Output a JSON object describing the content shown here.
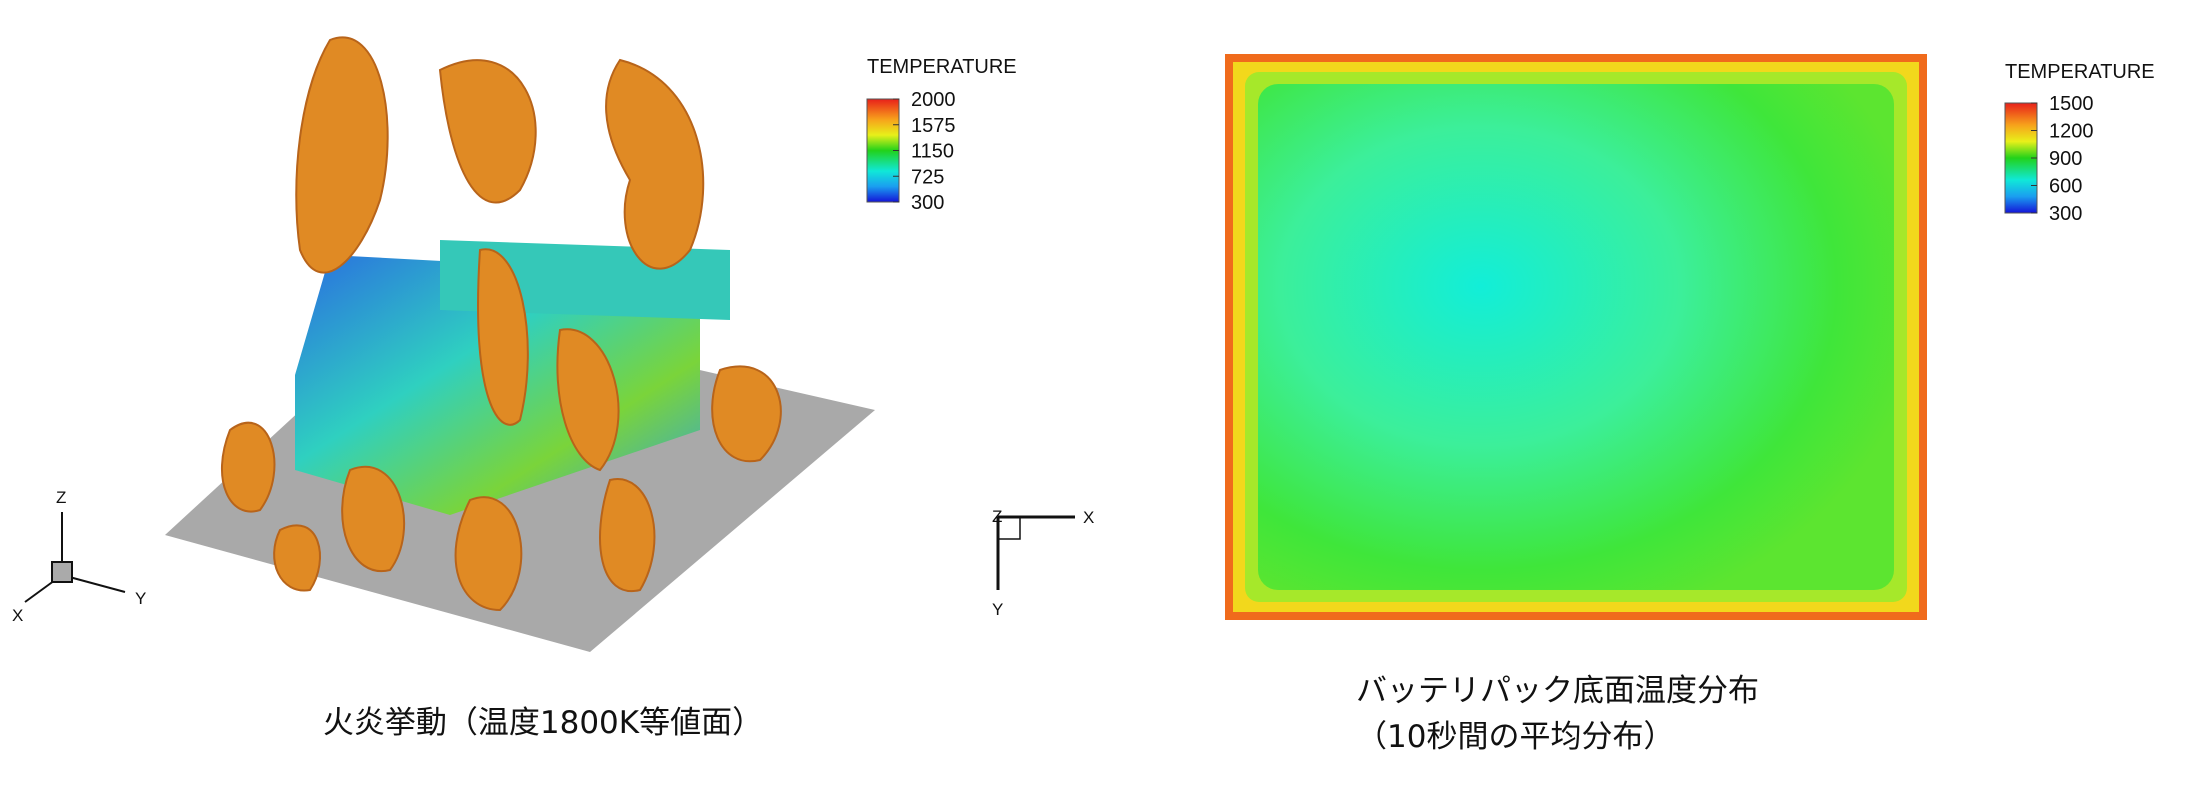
{
  "panels": [
    {
      "legend": {
        "title": "TEMPERATURE",
        "ticks": [
          2000,
          1575,
          1150,
          725,
          300
        ]
      },
      "axes": {
        "z": "Z",
        "x": "X",
        "y": "Y"
      },
      "caption": [
        "火炎挙動（温度1800K等値面）"
      ]
    },
    {
      "legend": {
        "title": "TEMPERATURE",
        "ticks": [
          1500,
          1200,
          900,
          600,
          300
        ]
      },
      "axes": {
        "z": "Z",
        "x": "X",
        "y": "Y"
      },
      "caption": [
        "バッテリパック底面温度分布",
        "（10秒間の平均分布）"
      ]
    }
  ]
}
